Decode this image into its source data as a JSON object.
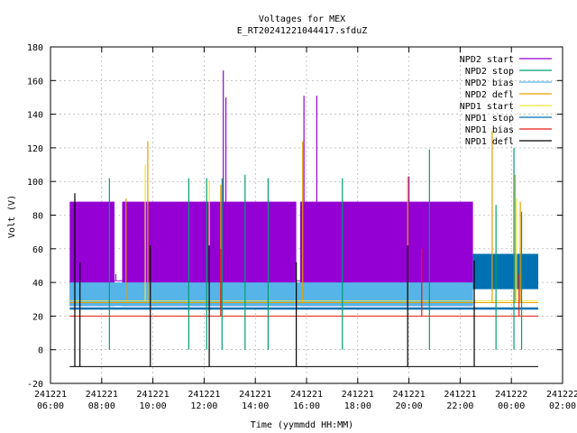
{
  "chart_data": {
    "type": "line",
    "title": "Voltages for MEX",
    "subtitle": "E_RT20241221044417.sfduZ",
    "xlabel": "Time (yymmdd HH:MM)",
    "ylabel": "Volt (V)",
    "xlim": [
      6,
      26
    ],
    "ylim": [
      -20,
      180
    ],
    "grid": true,
    "legend_position": "top-right",
    "x_ticks": [
      {
        "x": 6,
        "date": "241221",
        "time": "06:00"
      },
      {
        "x": 8,
        "date": "241221",
        "time": "08:00"
      },
      {
        "x": 10,
        "date": "241221",
        "time": "10:00"
      },
      {
        "x": 12,
        "date": "241221",
        "time": "12:00"
      },
      {
        "x": 14,
        "date": "241221",
        "time": "14:00"
      },
      {
        "x": 16,
        "date": "241221",
        "time": "16:00"
      },
      {
        "x": 18,
        "date": "241221",
        "time": "18:00"
      },
      {
        "x": 20,
        "date": "241221",
        "time": "20:00"
      },
      {
        "x": 22,
        "date": "241221",
        "time": "22:00"
      },
      {
        "x": 24,
        "date": "241222",
        "time": "00:00"
      },
      {
        "x": 26,
        "date": "241222",
        "time": "02:00"
      }
    ],
    "y_ticks": [
      -20,
      0,
      20,
      40,
      60,
      80,
      100,
      120,
      140,
      160,
      180
    ],
    "series": [
      {
        "name": "NPD2 start",
        "color": "#9400d3",
        "band": {
          "ranges": [
            [
              6.75,
              8.5
            ],
            [
              8.8,
              15.6
            ],
            [
              15.75,
              22.5
            ]
          ],
          "low": 26,
          "high": 88
        },
        "baseline_range": [
          6.75,
          22.5
        ],
        "baseline": 41,
        "spikes": [
          [
            8.55,
            45
          ],
          [
            12.75,
            166
          ],
          [
            12.85,
            150
          ],
          [
            15.9,
            151
          ],
          [
            16.4,
            151
          ],
          [
            20.0,
            103
          ]
        ]
      },
      {
        "name": "NPD2 stop",
        "color": "#009e73",
        "spikes": [
          [
            8.3,
            102
          ],
          [
            11.4,
            102
          ],
          [
            12.1,
            102
          ],
          [
            12.7,
            102
          ],
          [
            13.6,
            104
          ],
          [
            14.5,
            102
          ],
          [
            17.4,
            102
          ],
          [
            20.8,
            119
          ],
          [
            23.4,
            86
          ],
          [
            24.1,
            120
          ],
          [
            24.4,
            82
          ]
        ]
      },
      {
        "name": "NPD2 bias",
        "color": "#56b4e9",
        "band": {
          "ranges": [
            [
              6.75,
              22.5
            ]
          ],
          "low": 26,
          "high": 40
        }
      },
      {
        "name": "NPD2 defl",
        "color": "#e69f00",
        "baseline_range": [
          6.75,
          25.05
        ],
        "baseline": 28,
        "spikes": [
          [
            9.8,
            124
          ],
          [
            12.65,
            98
          ],
          [
            15.85,
            124
          ],
          [
            19.95,
            103
          ],
          [
            23.25,
            130
          ],
          [
            24.15,
            104
          ],
          [
            24.35,
            88
          ],
          [
            8.95,
            90
          ]
        ]
      },
      {
        "name": "NPD1 start",
        "color": "#f0e442",
        "baseline_range": [
          6.75,
          25.05
        ],
        "baseline": 29,
        "spikes": [
          [
            9.7,
            110
          ],
          [
            12.2,
            100
          ],
          [
            24.2,
            90
          ]
        ]
      },
      {
        "name": "NPD1 stop",
        "color": "#0072b2",
        "band": {
          "ranges": [
            [
              22.5,
              25.05
            ]
          ],
          "low": 36,
          "high": 57
        },
        "baseline_range": [
          6.75,
          25.05
        ],
        "baseline": 24.5
      },
      {
        "name": "NPD1 bias",
        "color": "#e51e10",
        "baseline_range": [
          6.75,
          25.05
        ],
        "baseline": 20,
        "spikes": [
          [
            12.65,
            60
          ],
          [
            20.5,
            60
          ],
          [
            24.3,
            45
          ]
        ]
      },
      {
        "name": "NPD1 defl",
        "color": "#000000",
        "baseline_range": [
          6.75,
          25.05
        ],
        "baseline": -10,
        "spikes": [
          [
            6.95,
            93
          ],
          [
            7.15,
            52
          ],
          [
            9.9,
            62
          ],
          [
            12.2,
            62
          ],
          [
            15.6,
            52
          ],
          [
            19.95,
            62
          ],
          [
            22.55,
            53
          ]
        ]
      }
    ]
  }
}
